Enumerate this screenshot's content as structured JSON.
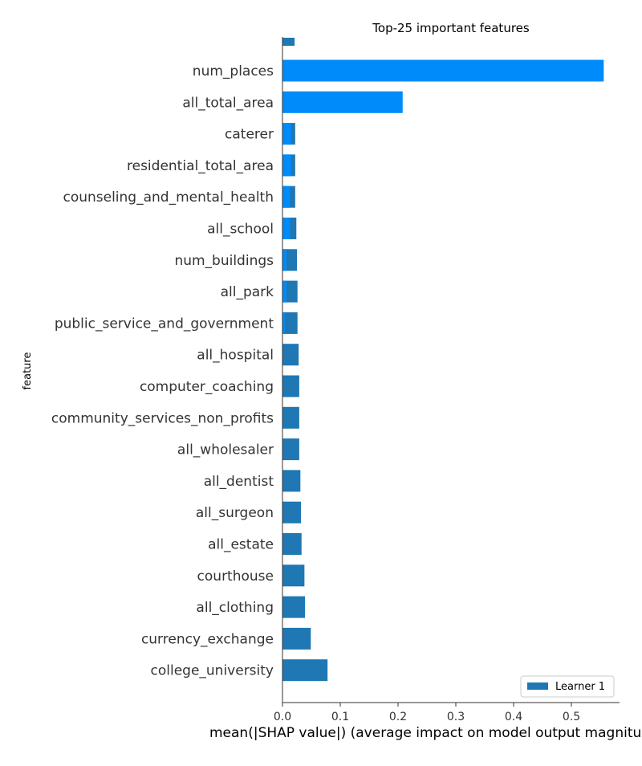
{
  "chart_data": {
    "type": "bar",
    "orientation": "horizontal",
    "title": "Top-25 important features",
    "ylabel": "feature",
    "xlabel": "mean(|SHAP value|) (average impact on model output magnitude)",
    "xlim": [
      0,
      0.58
    ],
    "xticks": [
      0.0,
      0.1,
      0.2,
      0.3,
      0.4,
      0.5
    ],
    "xtick_labels": [
      "0.0",
      "0.1",
      "0.2",
      "0.3",
      "0.4",
      "0.5"
    ],
    "grid": false,
    "legend": {
      "placement": "bottom-right",
      "entries": [
        "Learner 1"
      ]
    },
    "colors": {
      "learner_series": "#1f77b4",
      "highlight_series": "#008bfb"
    },
    "partial_top_bar_value": 0.021,
    "categories": [
      "num_places",
      "all_total_area",
      "caterer",
      "residential_total_area",
      "counseling_and_mental_health",
      "all_school",
      "num_buildings",
      "all_park",
      "public_service_and_government",
      "all_hospital",
      "computer_coaching",
      "community_services_non_profits",
      "all_wholesaler",
      "all_dentist",
      "all_surgeon",
      "all_estate",
      "courthouse",
      "all_clothing",
      "currency_exchange",
      "college_university"
    ],
    "series": [
      {
        "name": "Learner 1",
        "values": [
          0.0,
          0.0,
          0.022,
          0.022,
          0.022,
          0.024,
          0.025,
          0.026,
          0.026,
          0.028,
          0.029,
          0.029,
          0.029,
          0.031,
          0.032,
          0.033,
          0.038,
          0.039,
          0.049,
          0.078
        ]
      },
      {
        "values": [
          0.556,
          0.208,
          0.015,
          0.015,
          0.013,
          0.013,
          0.007,
          0.007,
          0.004,
          0.0,
          0.0,
          0.0,
          0.0,
          0.0,
          0.0,
          0.0,
          0.0,
          0.0,
          0.0,
          0.0
        ]
      }
    ]
  }
}
